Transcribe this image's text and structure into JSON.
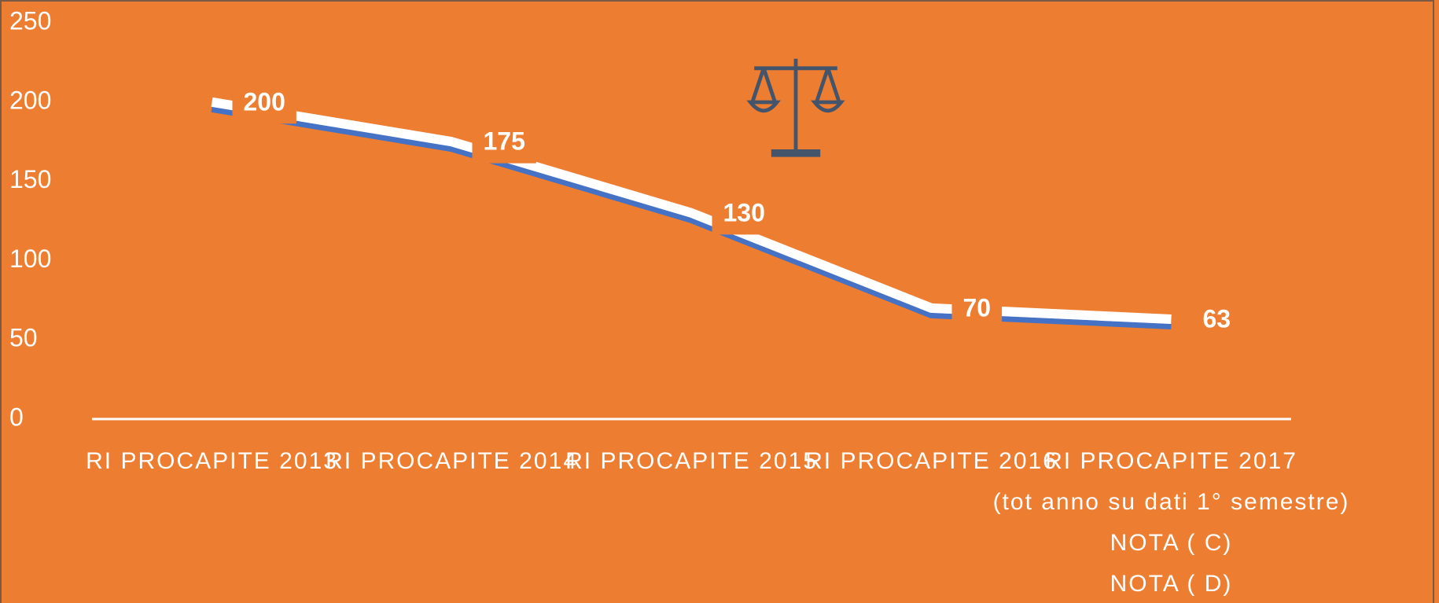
{
  "chart_data": {
    "type": "line",
    "categories": [
      "RI PROCAPITE 2013",
      "RI PROCAPITE 2014",
      "RI PROCAPITE 2015",
      "RI PROCAPITE 2016",
      "RI PROCAPITE 2017\n(tot anno su dati 1° semestre)\nNOTA ( C)\nNOTA ( D)"
    ],
    "values": [
      200,
      175,
      130,
      70,
      63
    ],
    "color": "#ffffff",
    "ylim": [
      0,
      250
    ],
    "yticks": [
      0,
      50,
      100,
      150,
      200,
      250
    ],
    "grid": false,
    "data_labels": true
  }
}
